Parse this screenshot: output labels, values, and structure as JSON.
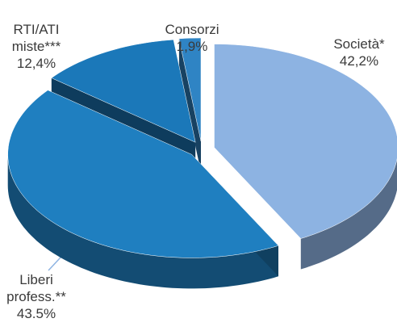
{
  "chart_data": {
    "type": "pie",
    "categories": [
      "Società*",
      "Liberi profess.**",
      "RTI/ATI miste***",
      "Consorzi"
    ],
    "values": [
      42.2,
      43.5,
      12.4,
      1.9
    ],
    "value_labels": [
      "42,2%",
      "43.5%",
      "12,4%",
      "1,9%"
    ],
    "colors": [
      "#8db3e2",
      "#1f7fc0",
      "#1b78b9",
      "#2f84c4"
    ]
  }
}
